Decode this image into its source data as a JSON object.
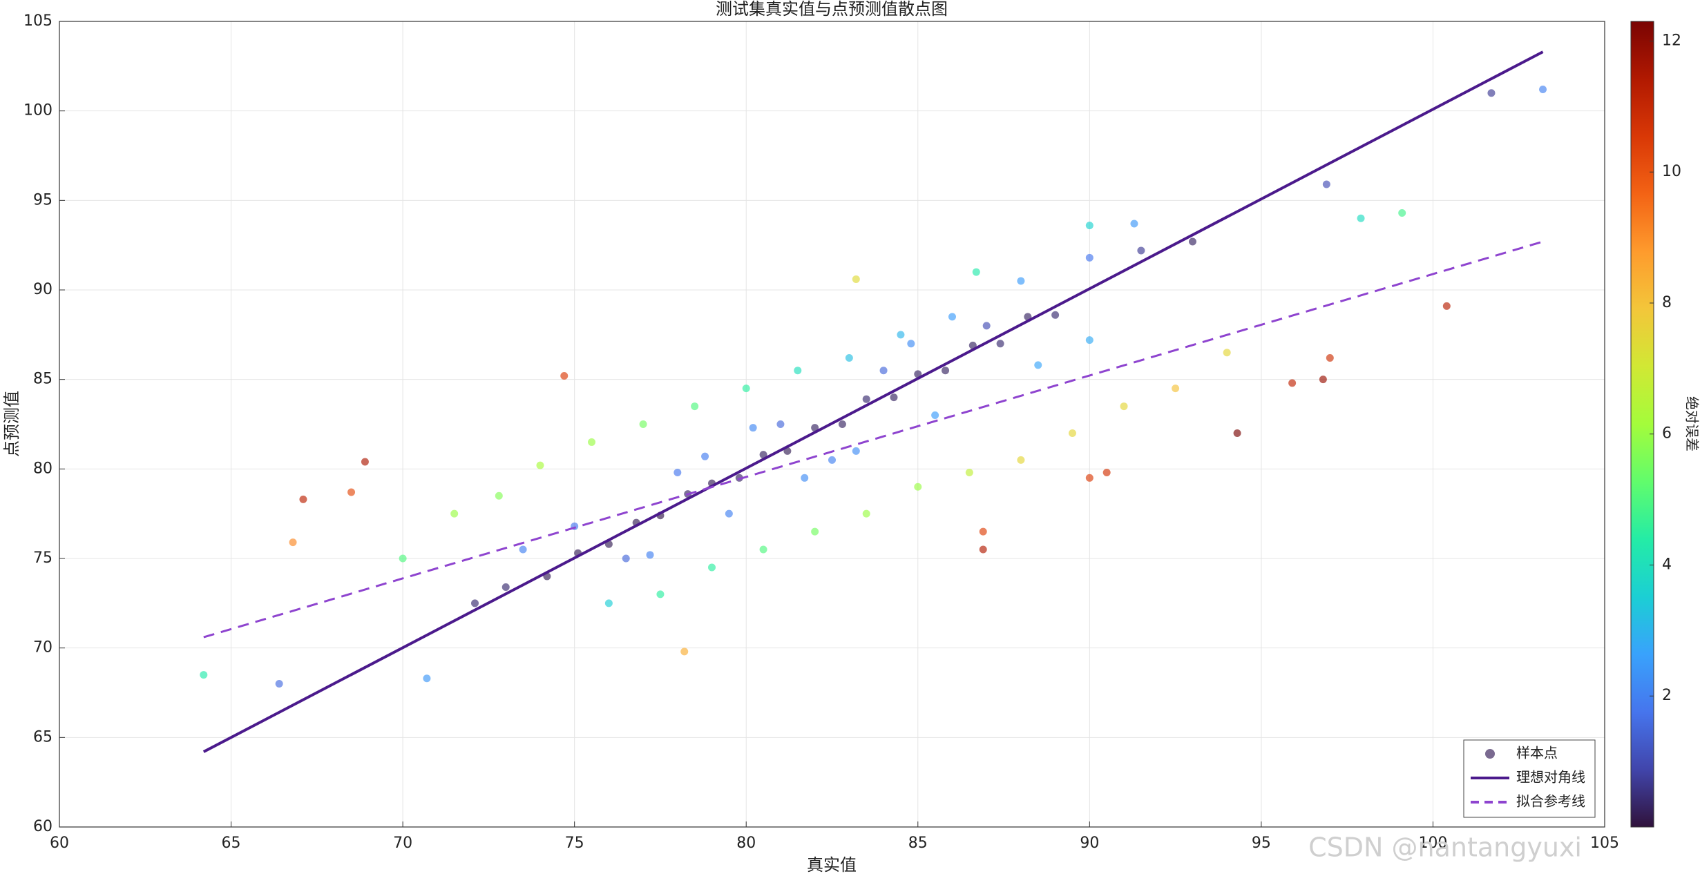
{
  "chart_data": {
    "type": "scatter",
    "title": "测试集真实值与点预测值散点图",
    "x_label": "真实值",
    "y_label": "点预测值",
    "colorbar_label": "绝对误差",
    "watermark": "CSDN @nantangyuxi",
    "xlim": [
      60,
      105
    ],
    "ylim": [
      60,
      105
    ],
    "xticks": [
      60,
      65,
      70,
      75,
      80,
      85,
      90,
      95,
      100,
      105
    ],
    "yticks": [
      60,
      65,
      70,
      75,
      80,
      85,
      90,
      95,
      100,
      105
    ],
    "clim": [
      0,
      12.3
    ],
    "cticks": [
      2,
      4,
      6,
      8,
      10,
      12
    ],
    "colormap": [
      "#30123b",
      "#4145ab",
      "#4675ed",
      "#39a2fc",
      "#1bcfd4",
      "#24eca6",
      "#61fc6c",
      "#a4fc3b",
      "#d1e834",
      "#f3c63a",
      "#fe9b2d",
      "#f36315",
      "#d93806",
      "#b11901",
      "#7a0403"
    ],
    "grid": true,
    "legend": "lower right",
    "series": [
      {
        "name": "样本点",
        "color": "#7a6a90",
        "x": [
          64.2,
          66.4,
          67.1,
          68.9,
          68.5,
          66.8,
          70.7,
          74.7,
          78.2,
          86.9,
          93.0,
          101.7,
          103.2,
          100.4,
          96.9,
          95.9,
          97.0,
          96.8,
          94.3,
          99.1,
          97.9,
          83.2,
          86.7,
          91.3,
          90.0,
          86.9,
          90.5,
          90.0,
          72.1,
          73.0,
          74.2,
          75.1,
          76.0,
          76.8,
          77.5,
          78.3,
          79.0,
          79.8,
          80.5,
          81.2,
          82.0,
          82.8,
          83.5,
          84.3,
          85.0,
          85.8,
          86.6,
          87.4,
          88.2,
          89.0,
          70.0,
          71.5,
          72.8,
          74.0,
          75.5,
          77.0,
          78.5,
          80.0,
          81.5,
          83.0,
          84.5,
          86.0,
          88.0,
          90.0,
          91.5,
          76.0,
          77.5,
          79.0,
          80.5,
          82.0,
          83.5,
          85.0,
          86.5,
          88.0,
          89.5,
          91.0,
          92.5,
          94.0,
          73.5,
          75.0,
          76.5,
          78.0,
          79.5,
          81.0,
          82.5,
          84.0,
          85.5,
          87.0,
          88.5,
          90.0,
          78.8,
          81.7,
          84.8,
          77.2,
          80.2,
          83.2
        ],
        "y": [
          68.5,
          68.0,
          78.3,
          80.4,
          78.7,
          75.9,
          68.3,
          85.2,
          69.8,
          75.5,
          92.7,
          101.0,
          101.2,
          89.1,
          95.9,
          84.8,
          86.2,
          85.0,
          82.0,
          94.3,
          94.0,
          90.6,
          91.0,
          93.7,
          93.6,
          76.5,
          79.8,
          79.5,
          72.5,
          73.4,
          74.0,
          75.3,
          75.8,
          77.0,
          77.4,
          78.6,
          79.2,
          79.5,
          80.8,
          81.0,
          82.3,
          82.5,
          83.9,
          84.0,
          85.3,
          85.5,
          86.9,
          87.0,
          88.5,
          88.6,
          75.0,
          77.5,
          78.5,
          80.2,
          81.5,
          82.5,
          83.5,
          84.5,
          85.5,
          86.2,
          87.5,
          88.5,
          90.5,
          91.8,
          92.2,
          72.5,
          73.0,
          74.5,
          75.5,
          76.5,
          77.5,
          79.0,
          79.8,
          80.5,
          82.0,
          83.5,
          84.5,
          86.5,
          75.5,
          76.8,
          75.0,
          79.8,
          77.5,
          82.5,
          80.5,
          85.5,
          83.0,
          88.0,
          85.8,
          87.2,
          80.7,
          79.5,
          87.0,
          75.2,
          82.3,
          81.0
        ]
      },
      {
        "name": "理想对角线",
        "color": "#4b1a8c",
        "x": [
          64.2,
          103.2
        ],
        "y": [
          64.2,
          103.3
        ]
      },
      {
        "name": "拟合参考线",
        "color": "#8e44cf",
        "dash": true,
        "x": [
          64.2,
          103.2
        ],
        "y": [
          70.6,
          92.7
        ]
      }
    ]
  }
}
